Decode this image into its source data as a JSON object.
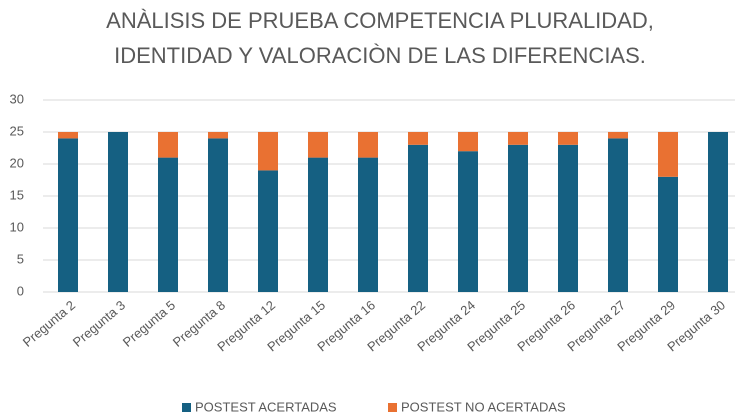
{
  "chart_data": {
    "type": "stacked_bar",
    "title": [
      "ANÀLISIS DE PRUEBA COMPETENCIA PLURALIDAD,",
      "IDENTIDAD Y VALORACIÒN DE LAS DIFERENCIAS."
    ],
    "categories": [
      "Pregunta 2",
      "Pregunta 3",
      "Pregunta 5",
      "Pregunta 8",
      "Pregunta 12",
      "Pregunta 15",
      "Pregunta 16",
      "Pregunta 22",
      "Pregunta 24",
      "Pregunta 25",
      "Pregunta 26",
      "Pregunta 27",
      "Pregunta 29",
      "Pregunta 30"
    ],
    "series": [
      {
        "name": "POSTEST ACERTADAS",
        "color": "#156082",
        "values": [
          24,
          25,
          21,
          24,
          19,
          21,
          21,
          23,
          22,
          23,
          23,
          24,
          18,
          25
        ]
      },
      {
        "name": "POSTEST NO ACERTADAS",
        "color": "#e97132",
        "values": [
          1,
          0,
          4,
          1,
          6,
          4,
          4,
          2,
          3,
          2,
          2,
          1,
          7,
          0
        ]
      }
    ],
    "ylim": [
      0,
      30
    ],
    "yticks": [
      0,
      5,
      10,
      15,
      20,
      25,
      30
    ],
    "grid": true,
    "legend": "bottom"
  }
}
